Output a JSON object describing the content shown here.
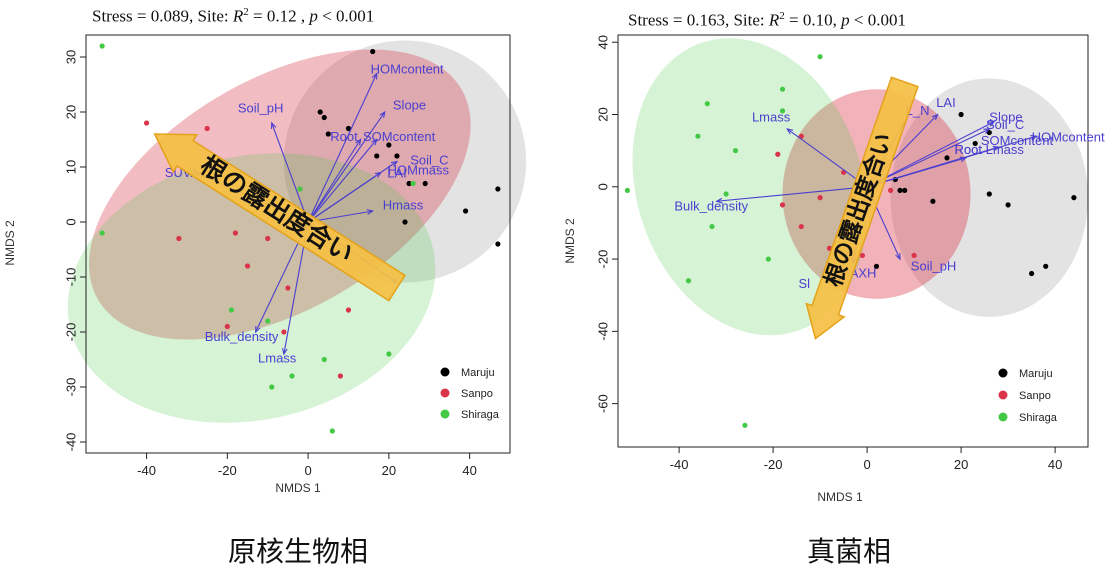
{
  "figures": [
    {
      "stress_prefix": "Stress = 0.089, Site: ",
      "stress_r2_pre": "R",
      "stress_r2_sup": "2",
      "stress_rest": " = 0.12 , ",
      "stress_p": "p",
      "stress_tail": " < 0.001",
      "caption": "原核生物相"
    },
    {
      "stress_prefix": "Stress = 0.163, Site: ",
      "stress_r2_pre": "R",
      "stress_r2_sup": "2",
      "stress_rest": " = 0.10, ",
      "stress_p": "p",
      "stress_tail": " < 0.001",
      "caption": "真菌相"
    }
  ],
  "chart_data": [
    {
      "type": "scatter",
      "title": "Stress = 0.089, Site: R2 = 0.12 , p < 0.001",
      "xlabel": "NMDS 1",
      "ylabel": "NMDS 2",
      "xlim": [
        -55,
        50
      ],
      "ylim": [
        -42,
        34
      ],
      "xticks": [
        -40,
        -20,
        0,
        20,
        40
      ],
      "yticks": [
        -40,
        -30,
        -20,
        -10,
        0,
        10,
        20,
        30
      ],
      "legend_position": "bottom-right",
      "colors": {
        "Maruju": "#000000",
        "Sanpo": "#d9344a",
        "Shiraga": "#44c944",
        "vector": "#4a3fcf",
        "annotation_fill": "#f5c045",
        "annotation_stroke": "#e4a21a"
      },
      "series": [
        {
          "name": "Maruju",
          "points": [
            [
              16,
              31
            ],
            [
              3,
              20
            ],
            [
              4,
              19
            ],
            [
              5,
              16
            ],
            [
              10,
              17
            ],
            [
              17,
              12
            ],
            [
              20,
              14
            ],
            [
              22,
              12
            ],
            [
              25,
              7
            ],
            [
              29,
              7
            ],
            [
              39,
              2
            ],
            [
              24,
              0
            ],
            [
              47,
              6
            ],
            [
              47,
              -4
            ]
          ]
        },
        {
          "name": "Sanpo",
          "points": [
            [
              -40,
              18
            ],
            [
              -25,
              17
            ],
            [
              -32,
              -3
            ],
            [
              -18,
              -2
            ],
            [
              -10,
              -3
            ],
            [
              -15,
              -8
            ],
            [
              -5,
              -12
            ],
            [
              -20,
              -19
            ],
            [
              -6,
              -20
            ],
            [
              10,
              -16
            ],
            [
              8,
              -28
            ]
          ]
        },
        {
          "name": "Shiraga",
          "points": [
            [
              -51,
              32
            ],
            [
              -51,
              -2
            ],
            [
              -19,
              -16
            ],
            [
              -10,
              -18
            ],
            [
              -4,
              -28
            ],
            [
              -9,
              -30
            ],
            [
              4,
              -25
            ],
            [
              20,
              -24
            ],
            [
              6,
              -38
            ],
            [
              -2,
              6
            ],
            [
              26,
              7
            ]
          ]
        }
      ],
      "vectors": [
        {
          "label": "HOMcontent",
          "x": 17,
          "y": 27
        },
        {
          "label": "Slope",
          "x": 19,
          "y": 20
        },
        {
          "label": "Root",
          "x": 13,
          "y": 15
        },
        {
          "label": "SOMcontent",
          "x": 17,
          "y": 15
        },
        {
          "label": "Soil_C",
          "x": 22,
          "y": 11
        },
        {
          "label": "LAI",
          "x": 18,
          "y": 9
        },
        {
          "label": "Hmass",
          "x": 16,
          "y": 2
        },
        {
          "label": "Soil_pH",
          "x": -9,
          "y": 18
        },
        {
          "label": "SUVA",
          "x": -28,
          "y": 9
        },
        {
          "label": "Bulk_density",
          "x": -13,
          "y": -20
        },
        {
          "label": "Lmass",
          "x": -6,
          "y": -24
        },
        {
          "label": "",
          "x": 22,
          "y": -11
        }
      ],
      "vector_labels": [
        {
          "text": "HOMcontent",
          "x": 15.5,
          "y": 27
        },
        {
          "text": "Slope",
          "x": 21,
          "y": 20.5
        },
        {
          "text": "Root",
          "x": 5.5,
          "y": 14.7
        },
        {
          "text": "SOMcontent",
          "x": 13.6,
          "y": 14.7
        },
        {
          "text": "Soil_C",
          "x": 25.3,
          "y": 10.5
        },
        {
          "text": "LAI",
          "x": 19.6,
          "y": 8.1
        },
        {
          "text": "HOMmass",
          "x": 19.7,
          "y": 8.6
        },
        {
          "text": "Hmass",
          "x": 18.5,
          "y": 2.3
        },
        {
          "text": "Soil_pH",
          "x": -17.4,
          "y": 19.9
        },
        {
          "text": "SUVA",
          "x": -35.5,
          "y": 8.2
        },
        {
          "text": "Bulk_density",
          "x": -25.6,
          "y": -21.6
        },
        {
          "text": "Lmass",
          "x": -12.4,
          "y": -25.5
        }
      ],
      "ellipses": [
        {
          "group": "Maruju",
          "cx": 24,
          "cy": 11,
          "rx": 30,
          "ry": 22,
          "rot": 0
        },
        {
          "group": "Sanpo",
          "cx": -7,
          "cy": 5,
          "rx": 52,
          "ry": 21,
          "rot": 30
        },
        {
          "group": "Shiraga",
          "cx": -14,
          "cy": -12,
          "rx": 46,
          "ry": 24,
          "rot": 12
        }
      ],
      "annotation": {
        "text": "根の露出度合い",
        "from": [
          22,
          -12
        ],
        "to": [
          -38,
          16
        ]
      }
    },
    {
      "type": "scatter",
      "title": "Stress = 0.163, Site: R2 = 0.10, p < 0.001",
      "xlabel": "NMDS 1",
      "ylabel": "NMDS 2",
      "xlim": [
        -53,
        47
      ],
      "ylim": [
        -72,
        42
      ],
      "xticks": [
        -40,
        -20,
        0,
        20,
        40
      ],
      "yticks": [
        -60,
        -40,
        -20,
        0,
        20,
        40
      ],
      "legend_position": "bottom-right",
      "colors": {
        "Maruju": "#000000",
        "Sanpo": "#d9344a",
        "Shiraga": "#44c944",
        "vector": "#4a3fcf",
        "annotation_fill": "#f5c045",
        "annotation_stroke": "#e4a21a"
      },
      "series": [
        {
          "name": "Maruju",
          "points": [
            [
              20,
              20
            ],
            [
              26,
              15
            ],
            [
              23,
              12
            ],
            [
              17,
              8
            ],
            [
              6,
              2
            ],
            [
              8,
              -1
            ],
            [
              7,
              -1
            ],
            [
              14,
              -4
            ],
            [
              26,
              -2
            ],
            [
              30,
              -5
            ],
            [
              44,
              -3
            ],
            [
              38,
              -22
            ],
            [
              35,
              -24
            ],
            [
              2,
              -22
            ]
          ]
        },
        {
          "name": "Sanpo",
          "points": [
            [
              -14,
              14
            ],
            [
              -19,
              9
            ],
            [
              -5,
              4
            ],
            [
              -10,
              -3
            ],
            [
              -18,
              -5
            ],
            [
              -14,
              -11
            ],
            [
              -3,
              -3
            ],
            [
              -8,
              -17
            ],
            [
              5,
              -1
            ],
            [
              -1,
              -19
            ],
            [
              10,
              -19
            ]
          ]
        },
        {
          "name": "Shiraga",
          "points": [
            [
              -10,
              36
            ],
            [
              -18,
              27
            ],
            [
              -34,
              23
            ],
            [
              -28,
              10
            ],
            [
              -18,
              21
            ],
            [
              -36,
              14
            ],
            [
              -51,
              -1
            ],
            [
              -30,
              -2
            ],
            [
              -33,
              -11
            ],
            [
              -38,
              -26
            ],
            [
              -26,
              -66
            ],
            [
              -21,
              -20
            ]
          ]
        }
      ],
      "vectors": [
        {
          "label": "Lmass",
          "x": -17,
          "y": 16
        },
        {
          "label": "Bulk_density",
          "x": -32,
          "y": -4
        },
        {
          "label": "LAI",
          "x": 15,
          "y": 20
        },
        {
          "label": "L_N",
          "x": 8,
          "y": 18
        },
        {
          "label": "Slope",
          "x": 27,
          "y": 18
        },
        {
          "label": "Soil_C",
          "x": 26,
          "y": 16
        },
        {
          "label": "HOMcontent",
          "x": 36,
          "y": 14
        },
        {
          "label": "SOMcontent",
          "x": 28,
          "y": 11
        },
        {
          "label": "Root",
          "x": 21,
          "y": 8
        },
        {
          "label": "Soil_pH",
          "x": 7,
          "y": -20
        },
        {
          "label": "",
          "x": -3,
          "y": -21
        },
        {
          "label": "",
          "x": -6,
          "y": -26
        }
      ],
      "vector_labels": [
        {
          "text": "Lmass",
          "x": -24.5,
          "y": 18.1
        },
        {
          "text": "Bulk_density",
          "x": -41,
          "y": -6.5
        },
        {
          "text": "LAI",
          "x": 14.7,
          "y": 22.1
        },
        {
          "text": "L_N",
          "x": 8.2,
          "y": 19.8
        },
        {
          "text": "Slope",
          "x": 26,
          "y": 18
        },
        {
          "text": "Soil_C",
          "x": 25.3,
          "y": 16
        },
        {
          "text": "HOMcontent",
          "x": 35,
          "y": 12.5
        },
        {
          "text": "SOMcontent",
          "x": 24.2,
          "y": 11.5
        },
        {
          "text": "Root",
          "x": 18.6,
          "y": 9.1
        },
        {
          "text": "Root Lmass",
          "x": 18.6,
          "y": 9.1
        },
        {
          "text": "Soil_pH",
          "x": 9.3,
          "y": -23.1
        },
        {
          "text": "MAXH",
          "x": -6,
          "y": -25.1
        },
        {
          "text": "Sl",
          "x": -14.6,
          "y": -28
        }
      ],
      "ellipses": [
        {
          "group": "Maruju",
          "cx": 26,
          "cy": -3,
          "rx": 21,
          "ry": 33,
          "rot": 0
        },
        {
          "group": "Sanpo",
          "cx": 2,
          "cy": -2,
          "rx": 20,
          "ry": 29,
          "rot": 0
        },
        {
          "group": "Shiraga",
          "cx": -25,
          "cy": 0,
          "rx": 24,
          "ry": 42,
          "rot": 18
        }
      ],
      "annotation": {
        "text": "根の露出度合い",
        "from": [
          8,
          29
        ],
        "to": [
          -11,
          -42
        ]
      }
    }
  ]
}
